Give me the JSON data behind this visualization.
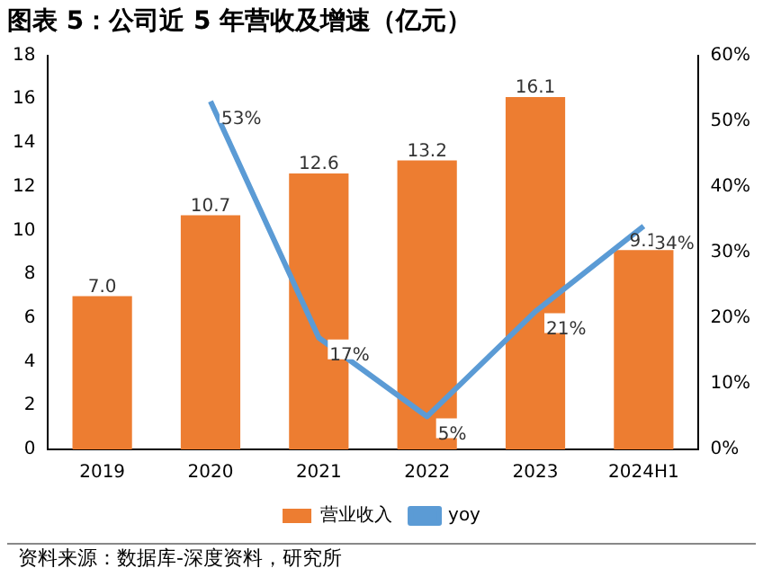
{
  "chart_data": {
    "type": "bar",
    "title": "图表 5：公司近 5 年营收及增速（亿元）",
    "annotations": [
      "资料来源：数据库-深度资料，研究所"
    ],
    "categories": [
      "2019",
      "2020",
      "2021",
      "2022",
      "2023",
      "2024H1"
    ],
    "series": [
      {
        "name": "营业收入",
        "color": "#ed7d31",
        "values": [
          7.0,
          10.7,
          12.6,
          13.2,
          16.1,
          9.1
        ],
        "value_labels": [
          "7.0",
          "10.7",
          "12.6",
          "13.2",
          "16.1",
          "9.1"
        ]
      },
      {
        "name": "yoy",
        "type": "line",
        "axis": "y2",
        "color": "#5b9bd5",
        "marker": "none",
        "values": [
          null,
          53,
          17,
          5,
          21,
          34
        ],
        "value_labels": [
          null,
          "53%",
          "17%",
          "5%",
          "21%",
          "34%"
        ]
      }
    ],
    "ylim": [
      0,
      18
    ],
    "yticks": [
      0,
      2,
      4,
      6,
      8,
      10,
      12,
      14,
      16,
      18
    ],
    "y2lim": [
      0,
      60
    ],
    "y2ticks": [
      {
        "value": 0,
        "label": "0%"
      },
      {
        "value": 10,
        "label": "10%"
      },
      {
        "value": 20,
        "label": "20%"
      },
      {
        "value": 30,
        "label": "30%"
      },
      {
        "value": 40,
        "label": "40%"
      },
      {
        "value": 50,
        "label": "50%"
      },
      {
        "value": 60,
        "label": "60%"
      }
    ],
    "grid": false,
    "legend": "bottom"
  }
}
